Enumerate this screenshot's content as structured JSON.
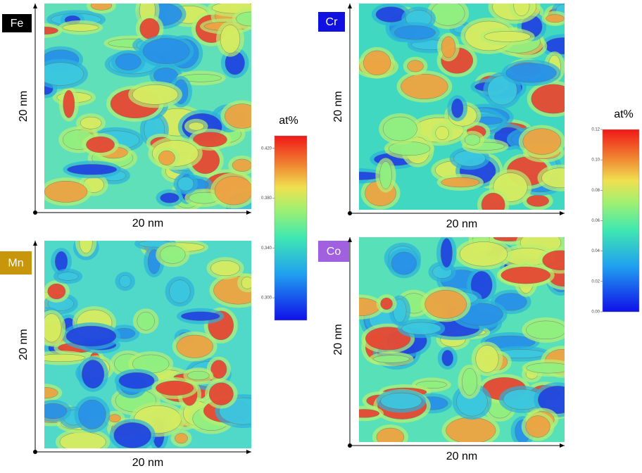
{
  "panels": [
    {
      "element": "Fe",
      "x_label": "20 nm",
      "y_label": "20 nm"
    },
    {
      "element": "Cr",
      "x_label": "20 nm",
      "y_label": "20 nm"
    },
    {
      "element": "Mn",
      "x_label": "20 nm",
      "y_label": "20 nm"
    },
    {
      "element": "Co",
      "x_label": "20 nm",
      "y_label": "20 nm"
    }
  ],
  "colorbars": [
    {
      "title": "at%",
      "range": [
        0.282,
        0.43
      ],
      "ticks": [
        {
          "value": 0.3,
          "label": "0.300"
        },
        {
          "value": 0.34,
          "label": "0.340"
        },
        {
          "value": 0.38,
          "label": "0.380"
        },
        {
          "value": 0.42,
          "label": "0.420"
        }
      ]
    },
    {
      "title": "at%",
      "range": [
        0,
        0.12
      ],
      "ticks": [
        {
          "value": 0,
          "label": "0.00"
        },
        {
          "value": 0.02,
          "label": "0.02"
        },
        {
          "value": 0.04,
          "label": "0.04"
        },
        {
          "value": 0.06,
          "label": "0.06"
        },
        {
          "value": 0.08,
          "label": "0.08"
        },
        {
          "value": 0.1,
          "label": "0.10"
        },
        {
          "value": 0.12,
          "label": "0.12"
        }
      ]
    }
  ]
}
